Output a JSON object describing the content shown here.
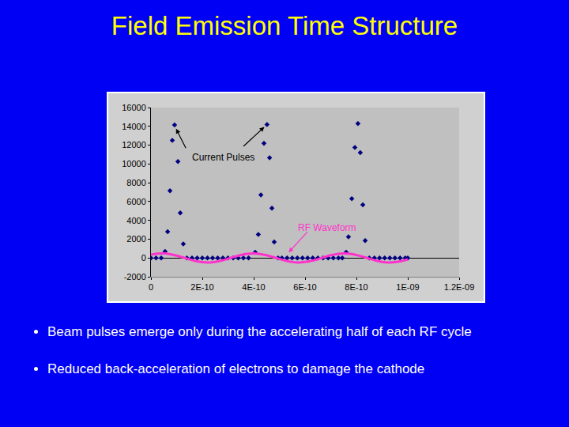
{
  "chart_data": {
    "type": "scatter",
    "title": "Field Emission Time Structure",
    "xlim": [
      0,
      1.2e-09
    ],
    "xticks": [
      0,
      {
        "value": 2e-10,
        "label": "2E-10"
      },
      {
        "value": 4e-10,
        "label": "4E-10"
      },
      {
        "value": 6e-10,
        "label": "6E-10"
      },
      {
        "value": 8e-10,
        "label": "8E-10"
      },
      {
        "value": 1e-09,
        "label": "1E-09"
      },
      {
        "value": 1.2e-09,
        "label": "1.2E-09"
      }
    ],
    "ylim": [
      -2000,
      16000
    ],
    "yticks": [
      -2000,
      0,
      2000,
      4000,
      6000,
      8000,
      10000,
      12000,
      14000,
      16000
    ],
    "grid": false,
    "series": [
      {
        "type": "scatter",
        "marker": "diamond",
        "color": "#000080",
        "x": [
          0,
          2e-11,
          4e-11,
          5.5e-11,
          6.5e-11,
          7.4e-11,
          8.3e-11,
          9.2e-11,
          1.05e-10,
          1.14e-10,
          1.26e-10,
          1.4e-10,
          1.6e-10,
          1.8e-10,
          2e-10,
          2.2e-10,
          2.4e-10,
          2.6e-10,
          2.8e-10,
          3e-10,
          3.2e-10,
          3.4e-10,
          3.6e-10,
          3.8e-10,
          4.06e-10,
          4.18e-10,
          4.28e-10,
          4.4e-10,
          4.52e-10,
          4.62e-10,
          4.71e-10,
          4.8e-10,
          4.95e-10,
          5.1e-10,
          5.3e-10,
          5.5e-10,
          5.7e-10,
          5.9e-10,
          6.1e-10,
          6.3e-10,
          6.5e-10,
          6.7e-10,
          6.9e-10,
          7.1e-10,
          7.3e-10,
          7.45e-10,
          7.6e-10,
          7.69e-10,
          7.82e-10,
          7.94e-10,
          8.06e-10,
          8.15e-10,
          8.25e-10,
          8.34e-10,
          8.5e-10,
          8.7e-10,
          8.9e-10,
          9.1e-10,
          9.3e-10,
          9.5e-10,
          9.7e-10,
          9.9e-10,
          1e-09
        ],
        "values": [
          0,
          0,
          0,
          700,
          2800,
          7150,
          12500,
          14150,
          10250,
          4800,
          1500,
          0,
          0,
          0,
          0,
          0,
          0,
          0,
          0,
          0,
          0,
          0,
          0,
          0,
          600,
          2500,
          6700,
          12200,
          14200,
          10650,
          5300,
          1700,
          0,
          0,
          0,
          0,
          0,
          0,
          0,
          0,
          0,
          0,
          0,
          0,
          0,
          0,
          600,
          2250,
          6300,
          11750,
          14300,
          11200,
          5650,
          1850,
          0,
          0,
          0,
          0,
          0,
          0,
          0,
          0,
          0
        ]
      },
      {
        "type": "line",
        "line_style": "solid",
        "color": "#ff33cc",
        "x": [
          0,
          2.5e-11,
          5e-11,
          7.5e-11,
          1e-10,
          1.25e-10,
          1.5e-10,
          1.75e-10,
          2e-10,
          2.25e-10,
          2.5e-10,
          2.75e-10,
          3e-10,
          3.25e-10,
          3.5e-10,
          3.75e-10,
          4e-10,
          4.25e-10,
          4.5e-10,
          4.75e-10,
          5e-10,
          5.25e-10,
          5.5e-10,
          5.75e-10,
          6e-10,
          6.25e-10,
          6.5e-10,
          6.75e-10,
          7e-10,
          7.25e-10,
          7.5e-10,
          7.75e-10,
          8e-10,
          8.25e-10,
          8.5e-10,
          8.75e-10,
          9e-10,
          9.25e-10,
          9.5e-10,
          9.75e-10,
          1e-09
        ],
        "values": [
          350,
          455,
          476,
          405,
          256,
          57,
          -153,
          -333,
          -449,
          -478,
          -415,
          -275,
          -79,
          132,
          317,
          440,
          480,
          423,
          292,
          100,
          -113,
          -303,
          -433,
          -480,
          -431,
          -307,
          -119,
          95,
          286,
          421,
          480,
          441,
          318,
          138,
          -75,
          -274,
          -419,
          -480,
          -448,
          -336,
          -155
        ]
      }
    ],
    "annotations": [
      {
        "text": "Current Pulses",
        "x": 2.8e-10,
        "y": 10700,
        "color": "#000000",
        "arrows": [
          {
            "from": [
              1.45e-10,
              11190
            ],
            "to": [
              9.5e-11,
              13900
            ]
          },
          {
            "from": [
              3.51e-10,
              11650
            ],
            "to": [
              4.46e-10,
              14050
            ]
          }
        ]
      },
      {
        "text": "RF Waveform",
        "x": 6.85e-10,
        "y": 3200,
        "color": "#ff33cc",
        "arrows": [
          {
            "from": [
              6.18e-10,
              3030
            ],
            "to": [
              5.32e-10,
              470
            ]
          }
        ]
      }
    ]
  },
  "bullets": [
    "Beam pulses emerge only during the accelerating half of each RF cycle",
    "Reduced back-acceleration of electrons to damage the cathode"
  ]
}
